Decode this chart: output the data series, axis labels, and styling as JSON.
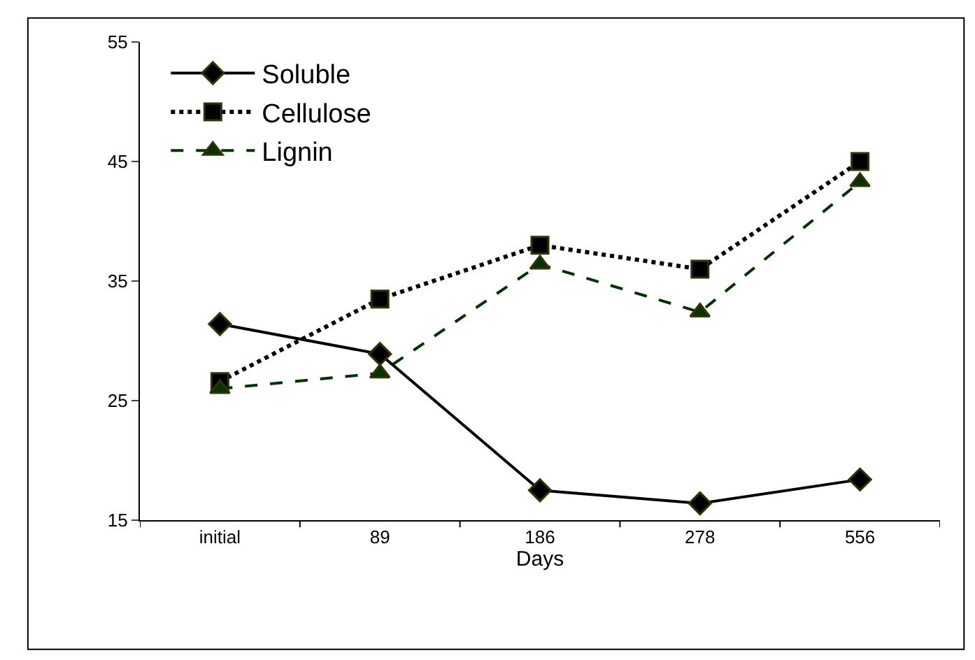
{
  "chart_data": {
    "type": "line",
    "xlabel": "Days",
    "categories": [
      "initial",
      "89",
      "186",
      "278",
      "556"
    ],
    "series": [
      {
        "name": "Soluble",
        "color": "#000000",
        "marker": "diamond",
        "line_style": "solid",
        "values": [
          31.4,
          28.9,
          17.5,
          16.4,
          18.4
        ]
      },
      {
        "name": "Cellulose",
        "color": "#000000",
        "marker": "square",
        "line_style": "dotted",
        "values": [
          26.6,
          33.5,
          38.0,
          36.0,
          45.0
        ]
      },
      {
        "name": "Lignin",
        "color": "#003300",
        "marker": "triangle",
        "line_style": "dashed",
        "values": [
          26.0,
          27.3,
          36.4,
          32.4,
          43.3
        ]
      }
    ],
    "ylim": [
      15,
      55
    ],
    "yticks": [
      15,
      25,
      35,
      45,
      55
    ],
    "legend": "top left"
  }
}
